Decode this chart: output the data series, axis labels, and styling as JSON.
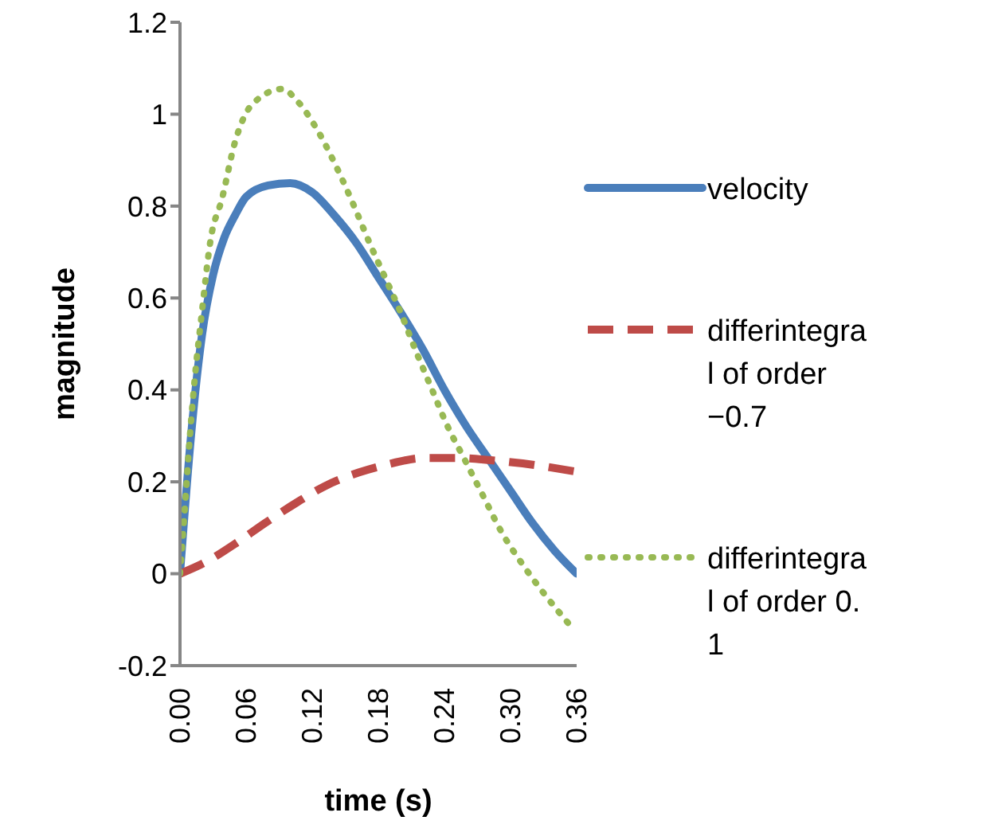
{
  "chart_data": {
    "type": "line",
    "xlabel": "time (s)",
    "ylabel": "magnitude",
    "xlim": [
      0,
      0.36
    ],
    "xticks": [
      {
        "value": 0,
        "label": "0.00"
      },
      {
        "value": 0.06,
        "label": "0.06"
      },
      {
        "value": 0.12,
        "label": "0.12"
      },
      {
        "value": 0.18,
        "label": "0.18"
      },
      {
        "value": 0.24,
        "label": "0.24"
      },
      {
        "value": 0.3,
        "label": "0.30"
      },
      {
        "value": 0.36,
        "label": "0.36"
      }
    ],
    "ylim": [
      -0.2,
      1.2
    ],
    "yticks": [
      -0.2,
      0,
      0.2,
      0.4,
      0.6,
      0.8,
      1,
      1.2
    ],
    "grid": false,
    "legend": "right",
    "marker": "none",
    "series": [
      {
        "name": "velocity",
        "color": "#4a7ebb",
        "line_style": "solid",
        "x": [
          0,
          0.01,
          0.02,
          0.03,
          0.04,
          0.05,
          0.06,
          0.08,
          0.1,
          0.12,
          0.14,
          0.16,
          0.18,
          0.2,
          0.22,
          0.24,
          0.26,
          0.28,
          0.3,
          0.32,
          0.34,
          0.36
        ],
        "values": [
          0,
          0.3,
          0.52,
          0.65,
          0.73,
          0.78,
          0.82,
          0.845,
          0.85,
          0.83,
          0.78,
          0.72,
          0.645,
          0.57,
          0.49,
          0.4,
          0.32,
          0.25,
          0.18,
          0.11,
          0.05,
          0
        ]
      },
      {
        "name": "differintegral of order −0.7",
        "color": "#be4b48",
        "line_style": "dashed",
        "x": [
          0,
          0.023,
          0.053,
          0.077,
          0.106,
          0.131,
          0.162,
          0.187,
          0.223,
          0.25,
          0.282,
          0.311,
          0.36
        ],
        "values": [
          0,
          0.025,
          0.07,
          0.11,
          0.155,
          0.19,
          0.22,
          0.237,
          0.252,
          0.252,
          0.247,
          0.24,
          0.222
        ]
      },
      {
        "name": "differintegral of order 0.1",
        "color": "#98b954",
        "line_style": "dotted",
        "x": [
          0,
          0.004,
          0.009,
          0.014,
          0.019,
          0.028,
          0.038,
          0.05,
          0.065,
          0.093,
          0.106,
          0.126,
          0.143,
          0.158,
          0.172,
          0.187,
          0.2,
          0.214,
          0.228,
          0.243,
          0.258,
          0.275,
          0.292,
          0.311,
          0.331,
          0.355
        ],
        "values": [
          0,
          0.13,
          0.3,
          0.44,
          0.55,
          0.73,
          0.815,
          0.94,
          1.02,
          1.055,
          1.03,
          0.96,
          0.88,
          0.8,
          0.72,
          0.64,
          0.57,
          0.485,
          0.405,
          0.32,
          0.25,
          0.17,
          0.09,
          0.02,
          -0.045,
          -0.115
        ]
      }
    ]
  }
}
